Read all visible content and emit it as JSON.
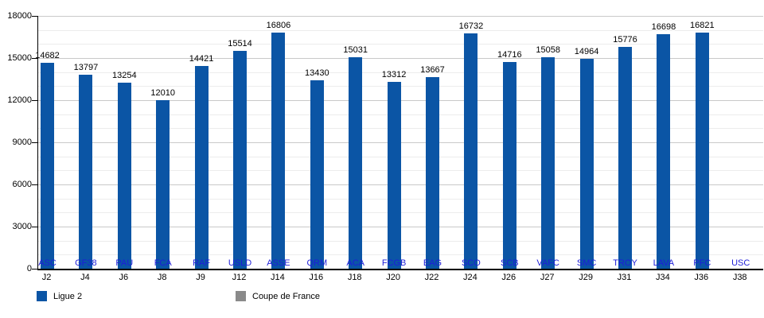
{
  "chart_data": {
    "type": "bar",
    "title": "",
    "xlabel": "",
    "ylabel": "",
    "categories": [
      "J2",
      "J4",
      "J6",
      "J8",
      "J9",
      "J12",
      "J14",
      "J16",
      "J18",
      "J20",
      "J22",
      "J24",
      "J26",
      "J27",
      "J29",
      "J31",
      "J34",
      "J36",
      "J38"
    ],
    "team_labels": [
      "ASC",
      "GF38",
      "PAU",
      "FCA",
      "RAF",
      "USLD",
      "ASSE",
      "QRM",
      "ACA",
      "FCGB",
      "EAG",
      "SCO",
      "SCB",
      "VAFC",
      "SMC",
      "TROY",
      "LAVA",
      "PFC",
      "USC"
    ],
    "series": [
      {
        "name": "Ligue 2",
        "color": "#0b55a5",
        "values": [
          14682,
          13797,
          13254,
          12010,
          14421,
          15514,
          16806,
          13430,
          15031,
          13312,
          13667,
          16732,
          14716,
          15058,
          14964,
          15776,
          16698,
          16821,
          null
        ]
      },
      {
        "name": "Coupe de France",
        "color": "#8a8a8a",
        "values": []
      }
    ],
    "ylim": [
      0,
      18000
    ],
    "yticks": [
      0,
      3000,
      6000,
      9000,
      12000,
      15000,
      18000
    ],
    "minor_grid_step": 1000,
    "grid": true,
    "value_labels_shown": true,
    "legend_position": "bottom",
    "colors": {
      "bar": "#0b55a5",
      "team_label": "#1d1dd8",
      "grid_minor": "#ececec",
      "grid_major": "#c9c9c9",
      "axis": "#000000",
      "value_label": "#000000",
      "coupe_de_france": "#8a8a8a"
    }
  }
}
